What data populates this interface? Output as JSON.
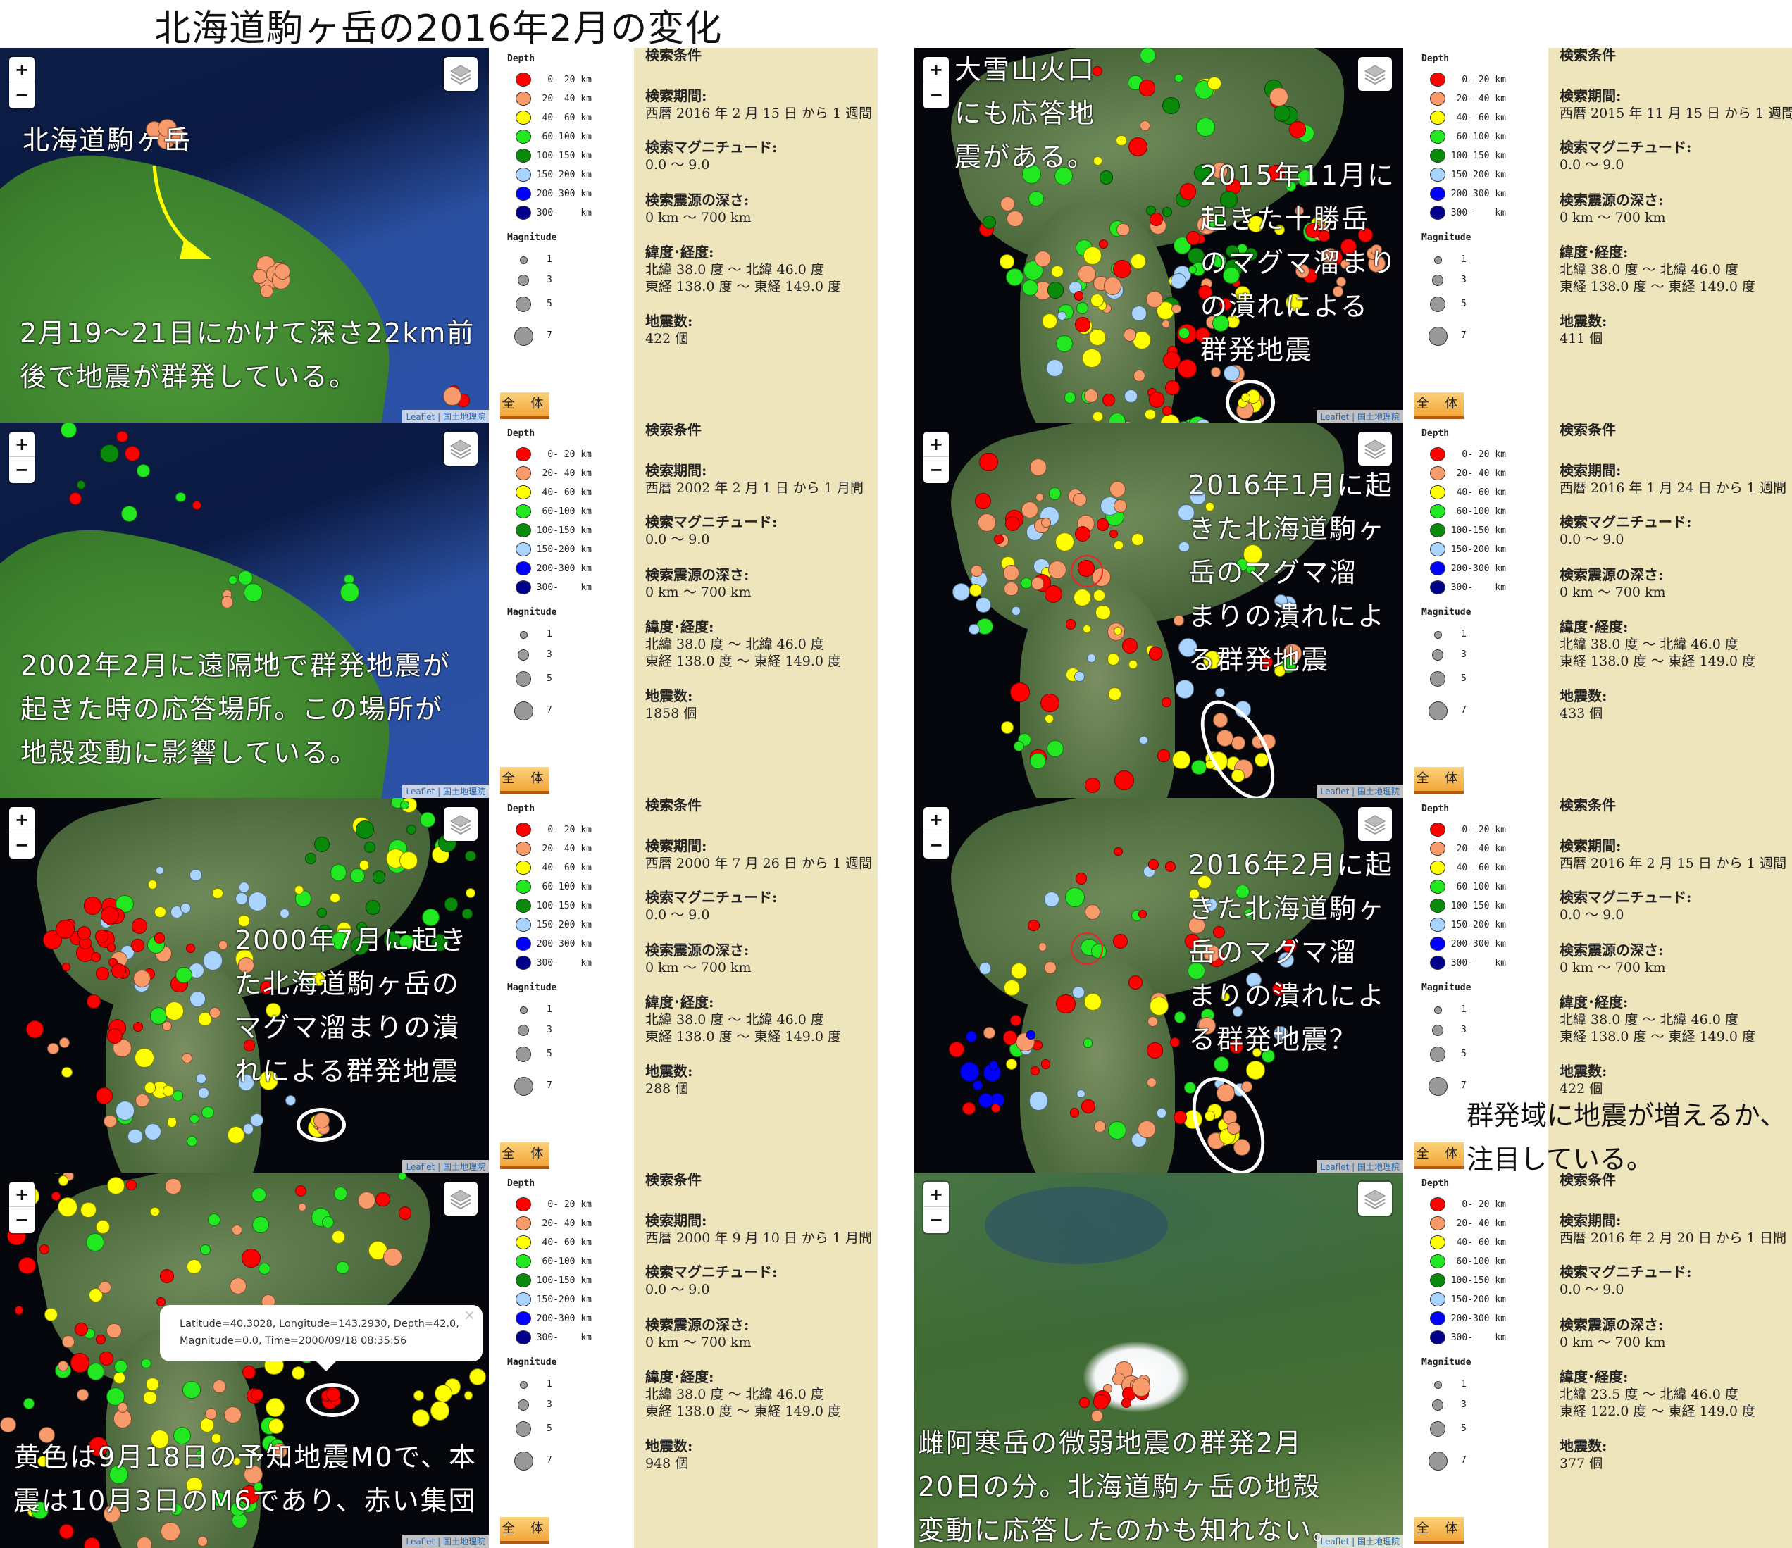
{
  "title": "北海道駒ヶ岳の2016年2月の変化",
  "common": {
    "zoom_in": "+",
    "zoom_out": "−",
    "attribution": "Leaflet | 国土地理院",
    "legend": {
      "depth_title": "Depth",
      "magnitude_title": "Magnitude",
      "depth": [
        {
          "label": "  0- 20 km",
          "color": "#ff0000"
        },
        {
          "label": " 20- 40 km",
          "color": "#f99a6a"
        },
        {
          "label": " 40- 60 km",
          "color": "#ffff00"
        },
        {
          "label": " 60-100 km",
          "color": "#22e822"
        },
        {
          "label": "100-150 km",
          "color": "#0a8a0a"
        },
        {
          "label": "150-200 km",
          "color": "#a8d4ff"
        },
        {
          "label": "200-300 km",
          "color": "#0000ff"
        },
        {
          "label": "300-    km",
          "color": "#00008b"
        }
      ],
      "magnitude": [
        {
          "label": "1",
          "size": 1
        },
        {
          "label": "3",
          "size": 3
        },
        {
          "label": "5",
          "size": 5
        },
        {
          "label": "7",
          "size": 7
        }
      ],
      "all_button": "全 体"
    },
    "info_heading": "検索条件",
    "period_label": "検索期間:",
    "magnitude_label": "検索マグニチュード:",
    "magnitude_value": "0.0 ～ 9.0",
    "depth_label": "検索震源の深さ:",
    "depth_value": " 0 km ～ 700 km",
    "latlon_label": "緯度･経度:",
    "count_label": "地震数:"
  },
  "panels": [
    {
      "map": "closeup",
      "period": "西暦 2016 年 2 月 15 日 から 1 週間",
      "lat": "北緯 38.0 度 ～ 北緯 46.0 度",
      "lon": "東経 138.0 度 ～ 東経 149.0 度",
      "count": "422 個",
      "annotations": [
        "北海道駒ヶ岳",
        "2月19～21日にかけて深さ22km前\n後で地震が群発している。"
      ]
    },
    {
      "map": "regional",
      "period": "西暦 2015 年 11 月 15 日 から 1 週間",
      "lat": "北緯 38.0 度 ～ 北緯 46.0 度",
      "lon": "東経 138.0 度 ～ 東経 149.0 度",
      "count": "411 個",
      "annotations": [
        "大雪山火口\nにも応答地\n震がある。",
        "2015年11月に\n起きた十勝岳\nのマグマ溜まり\nの潰れによる\n群発地震"
      ]
    },
    {
      "map": "closeup",
      "period": "西暦 2002 年 2 月 1 日 から 1 月間",
      "lat": "北緯 38.0 度 ～ 北緯 46.0 度",
      "lon": "東経 138.0 度 ～ 東経 149.0 度",
      "count": "1858 個",
      "annotations": [
        "2002年2月に遠隔地で群発地震が\n起きた時の応答場所。この場所が\n地殻変動に影響している。"
      ]
    },
    {
      "map": "regional",
      "period": "西暦 2016 年 1 月 24 日 から 1 週間",
      "lat": "北緯 38.0 度 ～ 北緯 46.0 度",
      "lon": "東経 138.0 度 ～ 東経 149.0 度",
      "count": "433 個",
      "annotations": [
        "2016年1月に起\nきた北海道駒ヶ\n岳のマグマ溜\nまりの潰れによ\nる群発地震"
      ]
    },
    {
      "map": "regional",
      "period": "西暦 2000 年 7 月 26 日 から 1 週間",
      "lat": "北緯 38.0 度 ～ 北緯 46.0 度",
      "lon": "東経 138.0 度 ～ 東経 149.0 度",
      "count": "288 個",
      "annotations": [
        "2000年7月に起き\nた北海道駒ヶ岳の\nマグマ溜まりの潰\nれによる群発地震"
      ]
    },
    {
      "map": "regional",
      "period": "西暦 2016 年 2 月 15 日 から 1 週間",
      "lat": "北緯 38.0 度 ～ 北緯 46.0 度",
      "lon": "東経 138.0 度 ～ 東経 149.0 度",
      "count": "422 個",
      "annotations": [
        "2016年2月に起\nきた北海道駒ヶ\n岳のマグマ溜\nまりの潰れによ\nる群発地震？"
      ]
    },
    {
      "map": "regional",
      "period": "西暦 2000 年 9 月 10 日 から 1 月間",
      "lat": "北緯 38.0 度 ～ 北緯 46.0 度",
      "lon": "東経 138.0 度 ～ 東経 149.0 度",
      "count": "948 個",
      "annotations": [
        "黄色は9月18日の予知地震M0で、本\n震は10月3日のM6であり、赤い集団"
      ],
      "popup": "Latitude=40.3028, Longitude=143.2930, Depth=42.0,\nMagnitude=0.0, Time=2000/09/18 08:35:56",
      "popup_close": "×"
    },
    {
      "map": "aerial",
      "period": "西暦 2016 年 2 月 20 日 から 1 日間",
      "lat": "北緯 23.5 度 ～ 北緯 46.0 度",
      "lon": "東経 122.0 度 ～ 東経 149.0 度",
      "count": "377 個",
      "annotations": [
        "雌阿寒岳の微弱地震の群発2月\n20日の分。北海道駒ヶ岳の地殻\n変動に応答したのかも知れない。"
      ]
    }
  ],
  "note": "群発域に地震が増えるか、\n注目している。"
}
